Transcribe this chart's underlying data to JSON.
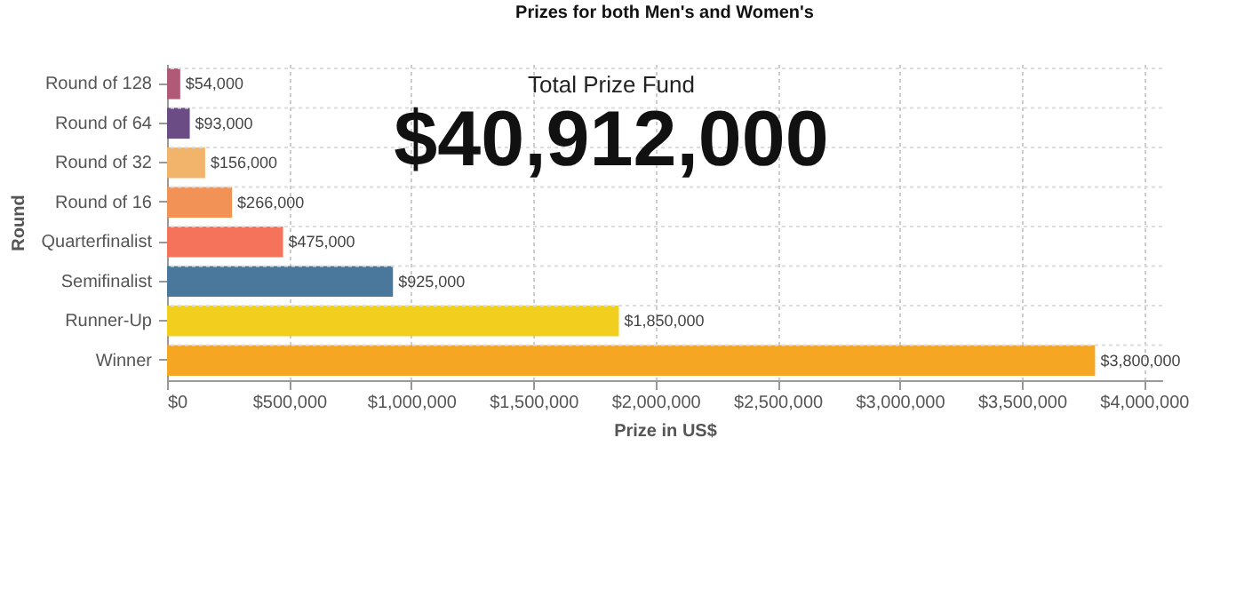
{
  "chart_data": {
    "type": "bar",
    "orientation": "horizontal",
    "title": "Prizes for both Men's and Women's",
    "xlabel": "Prize in US$",
    "ylabel": "Round",
    "categories": [
      "Round of 128",
      "Round of 64",
      "Round of 32",
      "Round of 16",
      "Quarterfinalist",
      "Semifinalist",
      "Runner-Up",
      "Winner"
    ],
    "values": [
      54000,
      93000,
      156000,
      266000,
      475000,
      925000,
      1850000,
      3800000
    ],
    "colors": [
      "#b05a78",
      "#6b4c85",
      "#f2b36a",
      "#f39256",
      "#f4735a",
      "#4a779c",
      "#f2cf1f",
      "#f5a623"
    ],
    "value_labels": [
      "$54,000",
      "$93,000",
      "$156,000",
      "$266,000",
      "$475,000",
      "$925,000",
      "$1,850,000",
      "$3,800,000"
    ],
    "xlim": [
      0,
      4075000
    ],
    "xticks": [
      {
        "value": 0,
        "label": "$0"
      },
      {
        "value": 500000,
        "label": "$500,000"
      },
      {
        "value": 1000000,
        "label": "$1,000,000"
      },
      {
        "value": 1500000,
        "label": "$1,500,000"
      },
      {
        "value": 2000000,
        "label": "$2,000,000"
      },
      {
        "value": 2500000,
        "label": "$2,500,000"
      },
      {
        "value": 3000000,
        "label": "$3,000,000"
      },
      {
        "value": 3500000,
        "label": "$3,500,000"
      },
      {
        "value": 4000000,
        "label": "$4,000,000"
      }
    ],
    "annotations": [
      "Total Prize Fund",
      "$40,912,000"
    ],
    "grid": true
  }
}
